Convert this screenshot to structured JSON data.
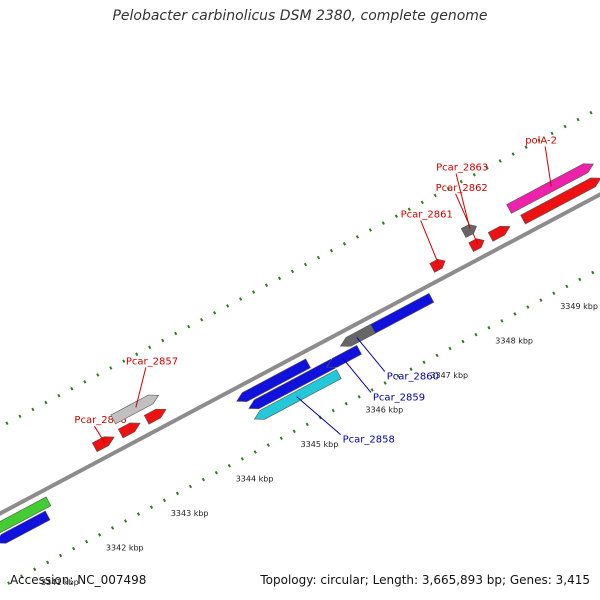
{
  "title": "Pelobacter carbinolicus DSM 2380, complete genome",
  "footer": {
    "accession": "Accession: NC_007498",
    "summary": "Topology: circular; Length: 3,665,893 bp; Genes: 3,415"
  },
  "colors": {
    "backbone": "#8c8c8c",
    "tick": "#2e7d1e",
    "label_forward": "#cc0000",
    "label_reverse": "#0000aa"
  },
  "axis": {
    "unit": "kbp",
    "ticks_kbp": [
      3341,
      3342,
      3343,
      3344,
      3345,
      3346,
      3347,
      3348,
      3349
    ],
    "tick_labels": [
      "3341 kbp",
      "3342 kbp",
      "3343 kbp",
      "3344 kbp",
      "3345 kbp",
      "3346 kbp",
      "3347 kbp",
      "3348 kbp",
      "3349 kbp"
    ]
  },
  "genes": [
    {
      "label": "",
      "start_kbp": 3340.6,
      "end_kbp": 3341.5,
      "strand": "-",
      "color": "#44cc33"
    },
    {
      "label": "",
      "start_kbp": 3340.6,
      "end_kbp": 3341.4,
      "strand": "-",
      "color": "#1111dd"
    },
    {
      "label": "Pcar_2856",
      "start_kbp": 3342.4,
      "end_kbp": 3342.7,
      "strand": "+",
      "color": "#ee1111"
    },
    {
      "label": "",
      "start_kbp": 3342.8,
      "end_kbp": 3343.1,
      "strand": "+",
      "color": "#ee1111"
    },
    {
      "label": "",
      "start_kbp": 3343.2,
      "end_kbp": 3343.5,
      "strand": "+",
      "color": "#ee1111"
    },
    {
      "label": "Pcar_2857",
      "start_kbp": 3342.8,
      "end_kbp": 3343.5,
      "strand": "+",
      "color": "#c0c0c0"
    },
    {
      "label": "Pcar_2858",
      "start_kbp": 3344.5,
      "end_kbp": 3345.8,
      "strand": "-",
      "color": "#22c8d8"
    },
    {
      "label": "",
      "start_kbp": 3344.5,
      "end_kbp": 3345.8,
      "strand": "-",
      "color": "#1111dd"
    },
    {
      "label": "",
      "start_kbp": 3344.4,
      "end_kbp": 3345.5,
      "strand": "-",
      "color": "#1111dd"
    },
    {
      "label": "Pcar_2859",
      "start_kbp": 3345.7,
      "end_kbp": 3346.2,
      "strand": "-",
      "color": "#1111dd"
    },
    {
      "label": "",
      "start_kbp": 3346.3,
      "end_kbp": 3347.4,
      "strand": "-",
      "color": "#1111dd"
    },
    {
      "label": "Pcar_2860",
      "start_kbp": 3346.0,
      "end_kbp": 3346.5,
      "strand": "-",
      "color": "#666666"
    },
    {
      "label": "Pcar_2861",
      "start_kbp": 3347.6,
      "end_kbp": 3347.8,
      "strand": "+",
      "color": "#ee1111"
    },
    {
      "label": "Pcar_2862",
      "start_kbp": 3348.2,
      "end_kbp": 3348.4,
      "strand": "+",
      "color": "#ee1111"
    },
    {
      "label": "Pcar_2863",
      "start_kbp": 3348.2,
      "end_kbp": 3348.4,
      "strand": "+",
      "color": "#666666"
    },
    {
      "label": "",
      "start_kbp": 3348.5,
      "end_kbp": 3348.8,
      "strand": "+",
      "color": "#ee1111"
    },
    {
      "label": "polA-2",
      "start_kbp": 3348.9,
      "end_kbp": 3350.2,
      "strand": "+",
      "color": "#ee22aa"
    },
    {
      "label": "",
      "start_kbp": 3349.0,
      "end_kbp": 3350.2,
      "strand": "+",
      "color": "#ee1111"
    }
  ]
}
